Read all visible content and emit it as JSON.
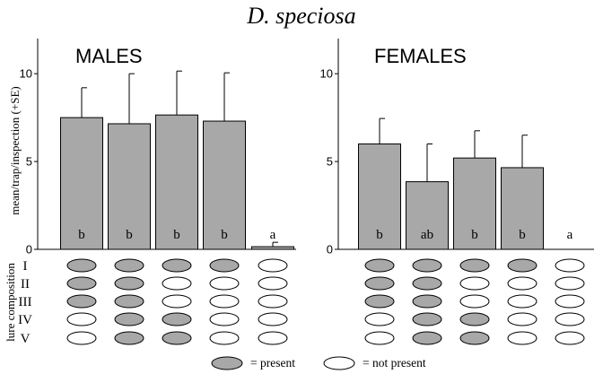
{
  "title": "D. speciosa",
  "ylabel": "mean/trap/inspection (+SE)",
  "colors": {
    "bar": "#a8a8a8",
    "outline": "#000000"
  },
  "lure_composition": {
    "label": "lure composition",
    "rows": [
      {
        "label": "I",
        "present": [
          true,
          true,
          true,
          true,
          false
        ]
      },
      {
        "label": "II",
        "present": [
          true,
          true,
          false,
          false,
          false
        ]
      },
      {
        "label": "III",
        "present": [
          true,
          true,
          false,
          false,
          false
        ]
      },
      {
        "label": "IV",
        "present": [
          false,
          true,
          true,
          false,
          false
        ]
      },
      {
        "label": "V",
        "present": [
          false,
          true,
          true,
          false,
          false
        ]
      }
    ]
  },
  "legend": {
    "present": {
      "label": "= present",
      "color": "#a8a8a8"
    },
    "absent": {
      "label": "= not present",
      "color": "#ffffff"
    }
  },
  "chart_data": [
    {
      "type": "bar",
      "title": "MALES",
      "ylim": [
        0,
        12
      ],
      "yticks": [
        0,
        5,
        10
      ],
      "values": [
        7.5,
        7.15,
        7.65,
        7.3,
        0.15
      ],
      "se": [
        1.7,
        2.85,
        2.5,
        2.75,
        0.25
      ],
      "letters": [
        "b",
        "b",
        "b",
        "b",
        "a"
      ],
      "grid": false
    },
    {
      "type": "bar",
      "title": "FEMALES",
      "ylim": [
        0,
        12
      ],
      "yticks": [
        0,
        5,
        10
      ],
      "values": [
        6.0,
        3.85,
        5.2,
        4.65,
        0
      ],
      "se": [
        1.45,
        2.15,
        1.55,
        1.85,
        0
      ],
      "letters": [
        "b",
        "ab",
        "b",
        "b",
        "a"
      ],
      "grid": false
    }
  ]
}
